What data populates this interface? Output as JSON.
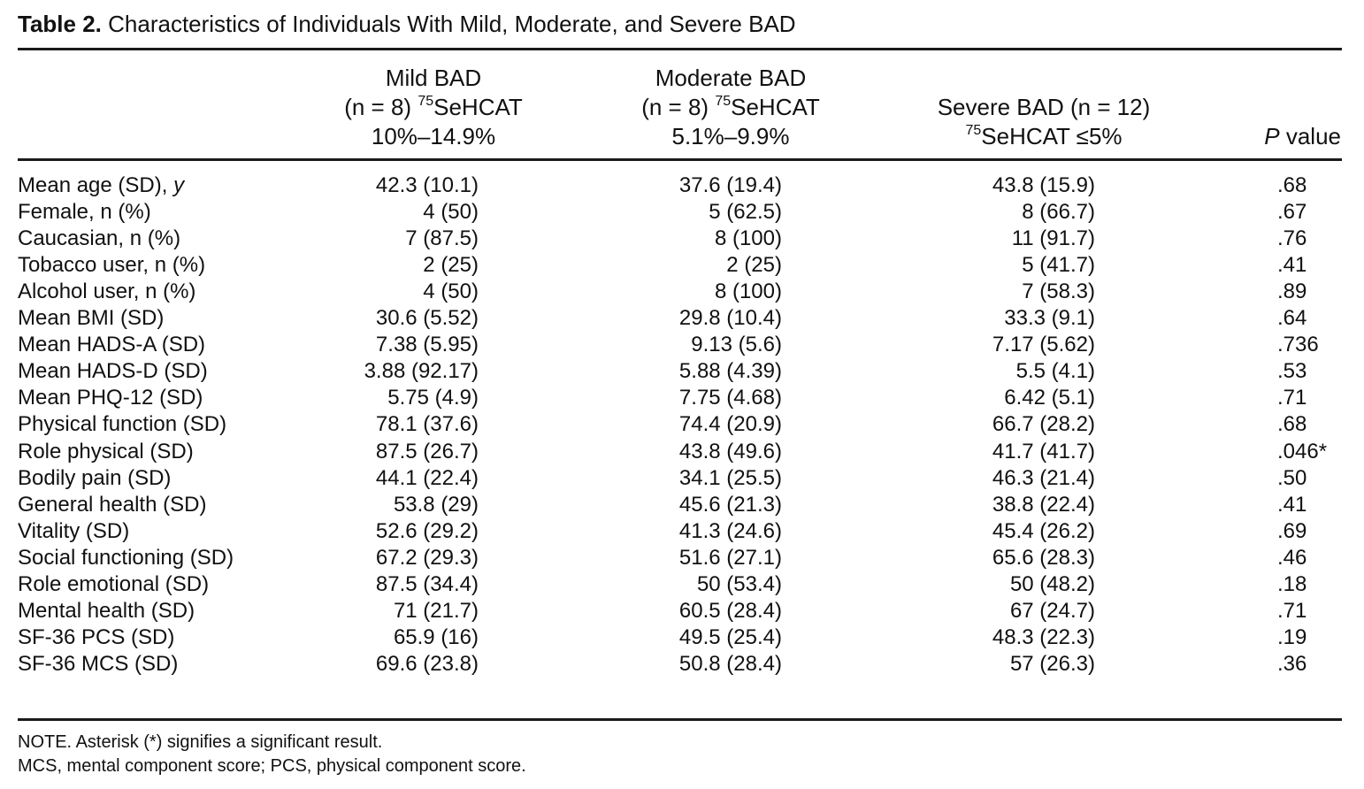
{
  "caption": {
    "label": "Table 2.",
    "title": "Characteristics of Individuals With Mild, Moderate, and Severe BAD"
  },
  "columns": {
    "mild": {
      "line1": "Mild BAD",
      "line2_pre": "(n = 8) ",
      "line2_sup": "75",
      "line2_post": "SeHCAT",
      "line3": "10%–14.9%"
    },
    "moderate": {
      "line1": "Moderate BAD",
      "line2_pre": "(n = 8) ",
      "line2_sup": "75",
      "line2_post": "SeHCAT",
      "line3": "5.1%–9.9%"
    },
    "severe": {
      "line1": "Severe BAD (n = 12)",
      "line2_sup": "75",
      "line2_post": "SeHCAT ≤5%"
    },
    "pvalue": {
      "italic": "P",
      "rest": " value"
    }
  },
  "rows": [
    {
      "label_pre": "Mean age (SD), ",
      "label_ital": "y",
      "mild": "42.3 (10.1)",
      "moderate": "37.6 (19.4)",
      "severe": "43.8 (15.9)",
      "p": ".68"
    },
    {
      "label_pre": "Female, n (%)",
      "label_ital": "",
      "mild": "4 (50)",
      "moderate": "5 (62.5)",
      "severe": "8 (66.7)",
      "p": ".67"
    },
    {
      "label_pre": "Caucasian, n (%)",
      "label_ital": "",
      "mild": "7 (87.5)",
      "moderate": "8 (100)",
      "severe": "11 (91.7)",
      "p": ".76"
    },
    {
      "label_pre": "Tobacco user, n (%)",
      "label_ital": "",
      "mild": "2 (25)",
      "moderate": "2 (25)",
      "severe": "5 (41.7)",
      "p": ".41"
    },
    {
      "label_pre": "Alcohol user, n (%)",
      "label_ital": "",
      "mild": "4 (50)",
      "moderate": "8 (100)",
      "severe": "7 (58.3)",
      "p": ".89"
    },
    {
      "label_pre": "Mean BMI (SD)",
      "label_ital": "",
      "mild": "30.6 (5.52)",
      "moderate": "29.8 (10.4)",
      "severe": "33.3 (9.1)",
      "p": ".64"
    },
    {
      "label_pre": "Mean HADS-A (SD)",
      "label_ital": "",
      "mild": "7.38 (5.95)",
      "moderate": "9.13 (5.6)",
      "severe": "7.17 (5.62)",
      "p": ".736"
    },
    {
      "label_pre": "Mean HADS-D (SD)",
      "label_ital": "",
      "mild": "3.88 (92.17)",
      "moderate": "5.88 (4.39)",
      "severe": "5.5 (4.1)",
      "p": ".53"
    },
    {
      "label_pre": "Mean PHQ-12 (SD)",
      "label_ital": "",
      "mild": "5.75 (4.9)",
      "moderate": "7.75 (4.68)",
      "severe": "6.42 (5.1)",
      "p": ".71"
    },
    {
      "label_pre": "Physical function (SD)",
      "label_ital": "",
      "mild": "78.1 (37.6)",
      "moderate": "74.4 (20.9)",
      "severe": "66.7 (28.2)",
      "p": ".68"
    },
    {
      "label_pre": "Role physical (SD)",
      "label_ital": "",
      "mild": "87.5 (26.7)",
      "moderate": "43.8 (49.6)",
      "severe": "41.7 (41.7)",
      "p": ".046*"
    },
    {
      "label_pre": "Bodily pain (SD)",
      "label_ital": "",
      "mild": "44.1 (22.4)",
      "moderate": "34.1 (25.5)",
      "severe": "46.3 (21.4)",
      "p": ".50"
    },
    {
      "label_pre": "General health (SD)",
      "label_ital": "",
      "mild": "53.8 (29)",
      "moderate": "45.6 (21.3)",
      "severe": "38.8 (22.4)",
      "p": ".41"
    },
    {
      "label_pre": "Vitality (SD)",
      "label_ital": "",
      "mild": "52.6 (29.2)",
      "moderate": "41.3 (24.6)",
      "severe": "45.4 (26.2)",
      "p": ".69"
    },
    {
      "label_pre": "Social functioning (SD)",
      "label_ital": "",
      "mild": "67.2 (29.3)",
      "moderate": "51.6 (27.1)",
      "severe": "65.6 (28.3)",
      "p": ".46"
    },
    {
      "label_pre": "Role emotional (SD)",
      "label_ital": "",
      "mild": "87.5 (34.4)",
      "moderate": "50 (53.4)",
      "severe": "50 (48.2)",
      "p": ".18"
    },
    {
      "label_pre": "Mental health (SD)",
      "label_ital": "",
      "mild": "71 (21.7)",
      "moderate": "60.5 (28.4)",
      "severe": "67 (24.7)",
      "p": ".71"
    },
    {
      "label_pre": "SF-36 PCS (SD)",
      "label_ital": "",
      "mild": "65.9 (16)",
      "moderate": "49.5 (25.4)",
      "severe": "48.3 (22.3)",
      "p": ".19"
    },
    {
      "label_pre": "SF-36 MCS (SD)",
      "label_ital": "",
      "mild": "69.6 (23.8)",
      "moderate": "50.8 (28.4)",
      "severe": "57 (26.3)",
      "p": ".36"
    }
  ],
  "notes": {
    "note1": "NOTE. Asterisk (*) signifies a significant result.",
    "note2": "MCS, mental component score; PCS, physical component score."
  }
}
